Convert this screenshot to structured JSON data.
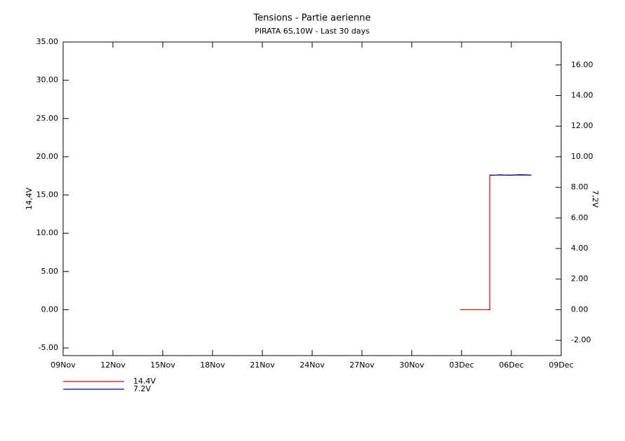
{
  "chart_data": {
    "type": "line",
    "title": "Tensions - Partie aerienne",
    "subtitle": "PIRATA 6S,10W - Last 30 days",
    "ylabel": "14,4V",
    "y2label": "7,2V",
    "xlim": [
      0,
      30
    ],
    "xticks": [
      {
        "value": 0,
        "label": "09Nov"
      },
      {
        "value": 3,
        "label": "12Nov"
      },
      {
        "value": 6,
        "label": "15Nov"
      },
      {
        "value": 9,
        "label": "18Nov"
      },
      {
        "value": 12,
        "label": "21Nov"
      },
      {
        "value": 15,
        "label": "24Nov"
      },
      {
        "value": 18,
        "label": "27Nov"
      },
      {
        "value": 21,
        "label": "30Nov"
      },
      {
        "value": 24,
        "label": "03Dec"
      },
      {
        "value": 27,
        "label": "06Dec"
      },
      {
        "value": 30,
        "label": "09Dec"
      }
    ],
    "ylim": [
      -6,
      35
    ],
    "yticks": [
      {
        "value": -5,
        "label": "-5.00"
      },
      {
        "value": 0,
        "label": "0.00"
      },
      {
        "value": 5,
        "label": "5.00"
      },
      {
        "value": 10,
        "label": "10.00"
      },
      {
        "value": 15,
        "label": "15.00"
      },
      {
        "value": 20,
        "label": "20.00"
      },
      {
        "value": 25,
        "label": "25.00"
      },
      {
        "value": 30,
        "label": "30.00"
      },
      {
        "value": 35,
        "label": "35.00"
      }
    ],
    "y2lim": [
      -3,
      17.5
    ],
    "y2ticks": [
      {
        "value": -2,
        "label": "-2.00"
      },
      {
        "value": 0,
        "label": "0.00"
      },
      {
        "value": 2,
        "label": "2.00"
      },
      {
        "value": 4,
        "label": "4.00"
      },
      {
        "value": 6,
        "label": "6.00"
      },
      {
        "value": 8,
        "label": "8.00"
      },
      {
        "value": 10,
        "label": "10.00"
      },
      {
        "value": 12,
        "label": "12.00"
      },
      {
        "value": 14,
        "label": "14.00"
      },
      {
        "value": 16,
        "label": "16.00"
      }
    ],
    "series": [
      {
        "name": "14.4V",
        "color": "#e00000",
        "x": [
          23.9,
          25.7,
          25.7,
          28.2
        ],
        "values": [
          0,
          0,
          17.6,
          17.6
        ]
      },
      {
        "name": "7.2V",
        "color": "#000090",
        "axis": "y2",
        "x": [
          25.7,
          26.3,
          26.9,
          27.5,
          28.2
        ],
        "values": [
          8.78,
          8.82,
          8.79,
          8.83,
          8.8
        ]
      }
    ]
  }
}
